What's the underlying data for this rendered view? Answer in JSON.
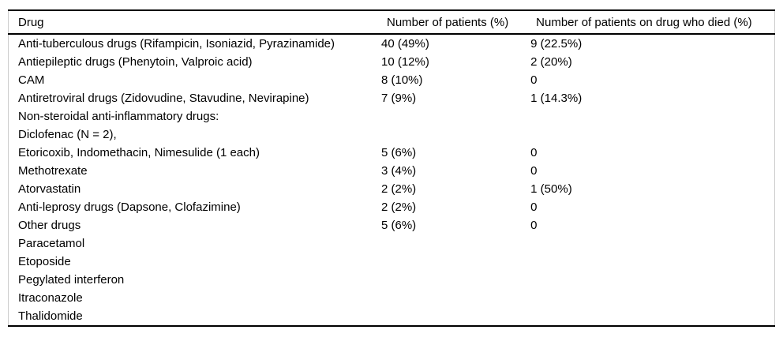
{
  "colors": {
    "rule": "#000000",
    "side_border": "#cccccc",
    "text": "#000000",
    "background": "#ffffff"
  },
  "table": {
    "columns": [
      "Drug",
      "Number of patients (%)",
      "Number of patients on drug who died (%)"
    ],
    "rows": [
      {
        "drug": "Anti-tuberculous drugs (Rifampicin, Isoniazid, Pyrazinamide)",
        "patients": "40 (49%)",
        "died": "9 (22.5%)"
      },
      {
        "drug": "Antiepileptic drugs (Phenytoin, Valproic acid)",
        "patients": "10 (12%)",
        "died": "2 (20%)"
      },
      {
        "drug": "CAM",
        "patients": "8 (10%)",
        "died": "0"
      },
      {
        "drug": "Antiretroviral drugs (Zidovudine, Stavudine, Nevirapine)",
        "patients": "7 (9%)",
        "died": "1 (14.3%)"
      },
      {
        "drug": "Non-steroidal anti-inflammatory drugs:",
        "patients": "",
        "died": ""
      },
      {
        "drug": "Diclofenac (N = 2),",
        "patients": "",
        "died": ""
      },
      {
        "drug": "Etoricoxib, Indomethacin, Nimesulide (1 each)",
        "patients": "5 (6%)",
        "died": "0"
      },
      {
        "drug": "Methotrexate",
        "patients": "3 (4%)",
        "died": "0"
      },
      {
        "drug": "Atorvastatin",
        "patients": "2 (2%)",
        "died": "1 (50%)"
      },
      {
        "drug": "Anti-leprosy drugs (Dapsone, Clofazimine)",
        "patients": "2 (2%)",
        "died": "0"
      },
      {
        "drug": "Other drugs",
        "patients": "5 (6%)",
        "died": "0"
      },
      {
        "drug": "Paracetamol",
        "patients": "",
        "died": ""
      },
      {
        "drug": "Etoposide",
        "patients": "",
        "died": ""
      },
      {
        "drug": "Pegylated interferon",
        "patients": "",
        "died": ""
      },
      {
        "drug": "Itraconazole",
        "patients": "",
        "died": ""
      },
      {
        "drug": "Thalidomide",
        "patients": "",
        "died": ""
      }
    ]
  }
}
